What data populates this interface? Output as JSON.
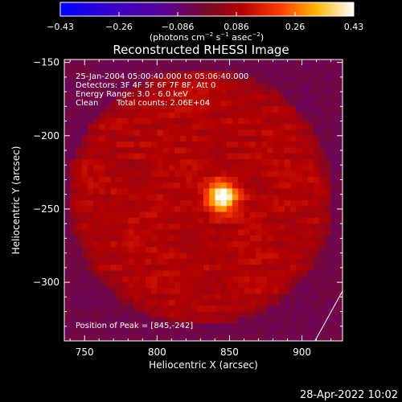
{
  "chart_data": {
    "type": "heatmap",
    "title": "Reconstructed RHESSI Image",
    "xlabel": "Heliocentric X (arcsec)",
    "ylabel": "Heliocentric Y (arcsec)",
    "xlim": [
      736,
      928
    ],
    "ylim": [
      -340,
      -148
    ],
    "xticks": [
      750,
      800,
      850,
      900
    ],
    "yticks": [
      -150,
      -200,
      -250,
      -300
    ],
    "xtick_labels": [
      "750",
      "800",
      "850",
      "900"
    ],
    "ytick_labels": [
      "−150",
      "−200",
      "−250",
      "−300"
    ],
    "colorbar": {
      "range": [
        -0.43,
        0.43
      ],
      "tick_labels": [
        "−0.43",
        "−0.26",
        "−0.086",
        "0.086",
        "0.26",
        "0.43"
      ],
      "unit_label": {
        "prefix": "(photons cm",
        "sup1": "−2",
        "mid1": " s",
        "sup2": "−1",
        "mid2": " asec",
        "sup3": "−2",
        "suffix": ")"
      },
      "colormap": "hot-blue"
    },
    "annotations": [
      "25-Jan-2004 05:00:40.000 to 05:06:40.000",
      "Detectors: 3F 4F 5F 6F 7F 8F, Att 0",
      "Energy Range: 3.0 - 6.0 keV",
      "Clean",
      "Total counts: 2.06E+04"
    ],
    "peak_label": "Position of Peak = [845,-242]",
    "peak": {
      "x": 845,
      "y": -242
    },
    "source_sigma_arcsec": 7,
    "background_region": {
      "center_x": 830,
      "center_y": -242,
      "radius_x": 92,
      "radius_y": 88
    },
    "limb_line": {
      "x": [
        909,
        928
      ],
      "y": [
        -340,
        -306
      ]
    },
    "grid_cells": [
      48,
      48
    ]
  },
  "timestamp": "28-Apr-2022 10:02"
}
